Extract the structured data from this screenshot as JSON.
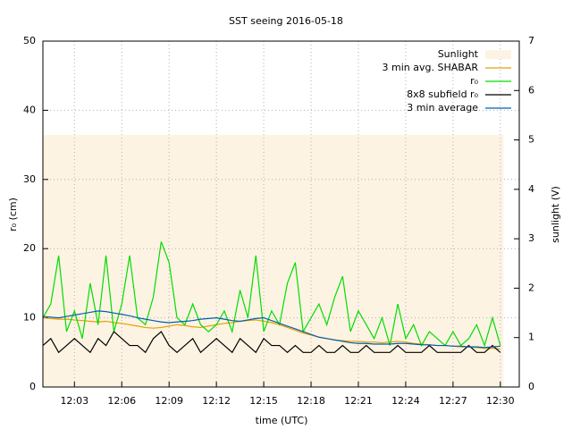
{
  "chart_data": {
    "type": "line",
    "title": "SST seeing 2016-05-18",
    "xlabel": "time (UTC)",
    "ylabel": "r₀ (cm)",
    "y2label": "sunlight (V)",
    "x": [
      721.0,
      721.5,
      722.0,
      722.5,
      723.0,
      723.5,
      724.0,
      724.5,
      725.0,
      725.5,
      726.0,
      726.5,
      727.0,
      727.5,
      728.0,
      728.5,
      729.0,
      729.5,
      730.0,
      730.5,
      731.0,
      731.5,
      732.0,
      732.5,
      733.0,
      733.5,
      734.0,
      734.5,
      735.0,
      735.5,
      736.0,
      736.5,
      737.0,
      737.5,
      738.0,
      738.5,
      739.0,
      739.5,
      740.0,
      740.5,
      741.0,
      741.5,
      742.0,
      742.5,
      743.0,
      743.5,
      744.0,
      744.5,
      745.0,
      745.5,
      746.0,
      746.5,
      747.0,
      747.5,
      748.0,
      748.5,
      749.0,
      749.5,
      750.0
    ],
    "series": [
      {
        "name": "Sunlight",
        "type": "area",
        "axis": "y2",
        "color": "#fdf3e3",
        "x": [
          721.0,
          750.2
        ],
        "values": [
          5.1,
          5.1
        ]
      },
      {
        "name": "3 min avg. SHABAR",
        "color": "#e69f00",
        "values": [
          10,
          9.9,
          9.8,
          9.8,
          9.7,
          9.6,
          9.5,
          9.4,
          9.5,
          9.3,
          9.2,
          9.0,
          8.8,
          8.6,
          8.5,
          8.6,
          8.8,
          9.0,
          8.9,
          8.7,
          8.6,
          8.8,
          9.0,
          9.2,
          9.3,
          9.5,
          9.6,
          9.7,
          9.5,
          9.3,
          9.0,
          8.6,
          8.2,
          7.8,
          7.5,
          7.2,
          7.0,
          6.8,
          6.7,
          6.6,
          6.6,
          6.5,
          6.5,
          6.4,
          6.5,
          6.6,
          6.5,
          6.3,
          6.2,
          6.1,
          6.0,
          6.0,
          5.9,
          5.8,
          5.8,
          5.7,
          5.6,
          5.6,
          5.5
        ]
      },
      {
        "name": "r₀",
        "color": "#00dd00",
        "values": [
          10,
          12,
          19,
          8,
          11,
          7,
          15,
          9,
          19,
          8,
          12,
          19,
          10,
          9,
          13,
          21,
          18,
          10,
          9,
          12,
          9,
          8,
          9,
          11,
          8,
          14,
          10,
          19,
          8,
          11,
          9,
          15,
          18,
          8,
          10,
          12,
          9,
          13,
          16,
          8,
          11,
          9,
          7,
          10,
          6,
          12,
          7,
          9,
          6,
          8,
          7,
          6,
          8,
          6,
          7,
          9,
          6,
          10,
          6
        ]
      },
      {
        "name": "8x8 subfield r₀",
        "color": "#000000",
        "values": [
          6,
          7,
          5,
          6,
          7,
          6,
          5,
          7,
          6,
          8,
          7,
          6,
          6,
          5,
          7,
          8,
          6,
          5,
          6,
          7,
          5,
          6,
          7,
          6,
          5,
          7,
          6,
          5,
          7,
          6,
          6,
          5,
          6,
          5,
          5,
          6,
          5,
          5,
          6,
          5,
          5,
          6,
          5,
          5,
          5,
          6,
          5,
          5,
          5,
          6,
          5,
          5,
          5,
          5,
          6,
          5,
          5,
          6,
          5
        ]
      },
      {
        "name": "3 min average",
        "color": "#0060ad",
        "values": [
          10.2,
          10.1,
          10.0,
          10.2,
          10.4,
          10.6,
          10.8,
          11.0,
          10.9,
          10.7,
          10.5,
          10.3,
          10.0,
          9.8,
          9.6,
          9.4,
          9.3,
          9.4,
          9.5,
          9.6,
          9.8,
          9.9,
          10.0,
          9.8,
          9.6,
          9.5,
          9.7,
          9.9,
          10.0,
          9.6,
          9.2,
          8.8,
          8.4,
          8.0,
          7.6,
          7.2,
          7.0,
          6.8,
          6.6,
          6.4,
          6.3,
          6.3,
          6.2,
          6.2,
          6.2,
          6.3,
          6.3,
          6.2,
          6.1,
          6.1,
          6.0,
          6.0,
          5.9,
          5.9,
          5.8,
          5.8,
          5.7,
          5.8,
          5.9
        ]
      }
    ],
    "xlim": [
      721,
      751.2
    ],
    "xticks": [
      {
        "value": 723,
        "label": "12:03"
      },
      {
        "value": 726,
        "label": "12:06"
      },
      {
        "value": 729,
        "label": "12:09"
      },
      {
        "value": 732,
        "label": "12:12"
      },
      {
        "value": 735,
        "label": "12:15"
      },
      {
        "value": 738,
        "label": "12:18"
      },
      {
        "value": 741,
        "label": "12:21"
      },
      {
        "value": 744,
        "label": "12:24"
      },
      {
        "value": 747,
        "label": "12:27"
      },
      {
        "value": 750,
        "label": "12:30"
      }
    ],
    "ylim": [
      0,
      50
    ],
    "yticks": [
      0,
      10,
      20,
      30,
      40,
      50
    ],
    "y2lim": [
      0,
      7
    ],
    "y2ticks": [
      0,
      1,
      2,
      3,
      4,
      5,
      6,
      7
    ],
    "grid": true,
    "legend": "upper right"
  }
}
